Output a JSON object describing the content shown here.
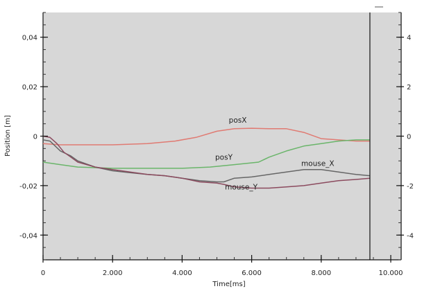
{
  "chart_data": {
    "type": "line",
    "xlabel": "Time[ms]",
    "ylabel": "Position [m]",
    "xlim": [
      0,
      10000
    ],
    "ylim": [
      -0.05,
      0.05
    ],
    "y2lim": [
      -5,
      5
    ],
    "grid": false,
    "legend": "none",
    "background": "#d7d7d7",
    "vertical_marker_x": 9400,
    "x_ticks": [
      {
        "value": 0,
        "label": "0"
      },
      {
        "value": 2000,
        "label": "2.000"
      },
      {
        "value": 4000,
        "label": "4.000"
      },
      {
        "value": 6000,
        "label": "6.000"
      },
      {
        "value": 8000,
        "label": "8.000"
      },
      {
        "value": 10000,
        "label": "10.000"
      }
    ],
    "y_ticks": [
      {
        "value": 0.04,
        "label": "0,04"
      },
      {
        "value": 0.02,
        "label": "0,02"
      },
      {
        "value": 0,
        "label": "0"
      },
      {
        "value": -0.02,
        "label": "-0,02"
      },
      {
        "value": -0.04,
        "label": "-0,04"
      }
    ],
    "y2_ticks": [
      {
        "value": 4,
        "label": "4"
      },
      {
        "value": 2,
        "label": "2"
      },
      {
        "value": 0,
        "label": "0"
      },
      {
        "value": -2,
        "label": "-2"
      },
      {
        "value": -4,
        "label": "-4"
      }
    ],
    "series": [
      {
        "name": "posX",
        "color": "#e07a72",
        "label_at": [
          5600,
          0.0055
        ],
        "points": [
          [
            0,
            -0.003
          ],
          [
            500,
            -0.0035
          ],
          [
            1000,
            -0.0035
          ],
          [
            2000,
            -0.0035
          ],
          [
            3000,
            -0.003
          ],
          [
            3800,
            -0.002
          ],
          [
            4400,
            -0.0005
          ],
          [
            5000,
            0.002
          ],
          [
            5500,
            0.003
          ],
          [
            6000,
            0.0032
          ],
          [
            6500,
            0.003
          ],
          [
            7000,
            0.003
          ],
          [
            7500,
            0.0015
          ],
          [
            8000,
            -0.001
          ],
          [
            8500,
            -0.0015
          ],
          [
            9000,
            -0.002
          ],
          [
            9400,
            -0.002
          ]
        ]
      },
      {
        "name": "posY",
        "color": "#6ab56a",
        "label_at": [
          5200,
          -0.0095
        ],
        "points": [
          [
            0,
            -0.0105
          ],
          [
            500,
            -0.0115
          ],
          [
            1000,
            -0.0125
          ],
          [
            2000,
            -0.013
          ],
          [
            3000,
            -0.013
          ],
          [
            4000,
            -0.013
          ],
          [
            4800,
            -0.0125
          ],
          [
            5500,
            -0.0115
          ],
          [
            6200,
            -0.0105
          ],
          [
            6500,
            -0.0085
          ],
          [
            7000,
            -0.006
          ],
          [
            7500,
            -0.004
          ],
          [
            8000,
            -0.003
          ],
          [
            8500,
            -0.002
          ],
          [
            9000,
            -0.0015
          ],
          [
            9400,
            -0.0015
          ]
        ]
      },
      {
        "name": "mouse_X",
        "color": "#666666",
        "label_at": [
          7900,
          -0.012
        ],
        "points": [
          [
            0,
            -0.0015
          ],
          [
            200,
            -0.002
          ],
          [
            500,
            -0.006
          ],
          [
            800,
            -0.008
          ],
          [
            1000,
            -0.01
          ],
          [
            1500,
            -0.0125
          ],
          [
            2000,
            -0.014
          ],
          [
            2500,
            -0.0148
          ],
          [
            3000,
            -0.0155
          ],
          [
            3500,
            -0.016
          ],
          [
            4000,
            -0.017
          ],
          [
            4500,
            -0.018
          ],
          [
            5000,
            -0.0185
          ],
          [
            5200,
            -0.0185
          ],
          [
            5500,
            -0.017
          ],
          [
            6000,
            -0.0165
          ],
          [
            6500,
            -0.0155
          ],
          [
            7000,
            -0.0145
          ],
          [
            7500,
            -0.0135
          ],
          [
            8000,
            -0.0135
          ],
          [
            8500,
            -0.0145
          ],
          [
            9000,
            -0.0155
          ],
          [
            9400,
            -0.016
          ]
        ]
      },
      {
        "name": "mouse_Y",
        "color": "#8b4a5e",
        "label_at": [
          5700,
          -0.0215
        ],
        "points": [
          [
            0,
            0
          ],
          [
            200,
            -0.0005
          ],
          [
            400,
            -0.003
          ],
          [
            600,
            -0.0065
          ],
          [
            800,
            -0.0085
          ],
          [
            1000,
            -0.0105
          ],
          [
            1500,
            -0.0125
          ],
          [
            2000,
            -0.0135
          ],
          [
            2500,
            -0.0145
          ],
          [
            3000,
            -0.0155
          ],
          [
            3500,
            -0.016
          ],
          [
            4000,
            -0.017
          ],
          [
            4500,
            -0.0185
          ],
          [
            5000,
            -0.019
          ],
          [
            5200,
            -0.0195
          ],
          [
            5500,
            -0.0205
          ],
          [
            6000,
            -0.021
          ],
          [
            6500,
            -0.021
          ],
          [
            7000,
            -0.0205
          ],
          [
            7500,
            -0.02
          ],
          [
            8000,
            -0.019
          ],
          [
            8500,
            -0.018
          ],
          [
            9000,
            -0.0175
          ],
          [
            9400,
            -0.017
          ]
        ]
      }
    ]
  }
}
